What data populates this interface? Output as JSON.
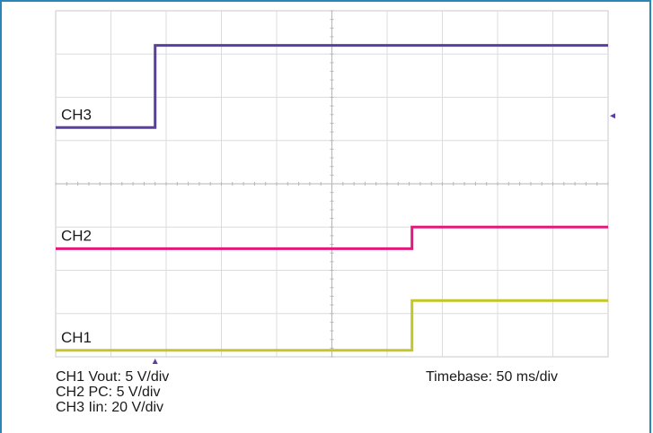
{
  "chart_data": {
    "type": "line",
    "title": "",
    "xlabel": "",
    "ylabel": "",
    "x_divisions": 10,
    "y_divisions": 8,
    "grid": true,
    "series": [
      {
        "name": "CH3",
        "color": "#5b3fa0",
        "x": [
          0,
          1.8,
          1.8,
          10
        ],
        "y": [
          5.3,
          5.3,
          7.2,
          7.2
        ]
      },
      {
        "name": "CH2",
        "color": "#e0197d",
        "x": [
          0,
          6.45,
          6.45,
          10
        ],
        "y": [
          2.5,
          2.5,
          3.0,
          3.0
        ]
      },
      {
        "name": "CH1",
        "color": "#c4c62a",
        "x": [
          0,
          6.45,
          6.45,
          10
        ],
        "y": [
          0.15,
          0.15,
          1.3,
          1.3
        ]
      }
    ],
    "trigger_marker": {
      "x": 1.8,
      "color": "#5b3fa0"
    },
    "level_marker": {
      "y": 5.3,
      "color": "#5b3fa0"
    }
  },
  "footer": {
    "settings": [
      "CH1 Vout: 5 V/div",
      "CH2 PC: 5 V/div",
      "CH3 Iin: 20 V/div"
    ],
    "timebase": "Timebase: 50 ms/div"
  }
}
